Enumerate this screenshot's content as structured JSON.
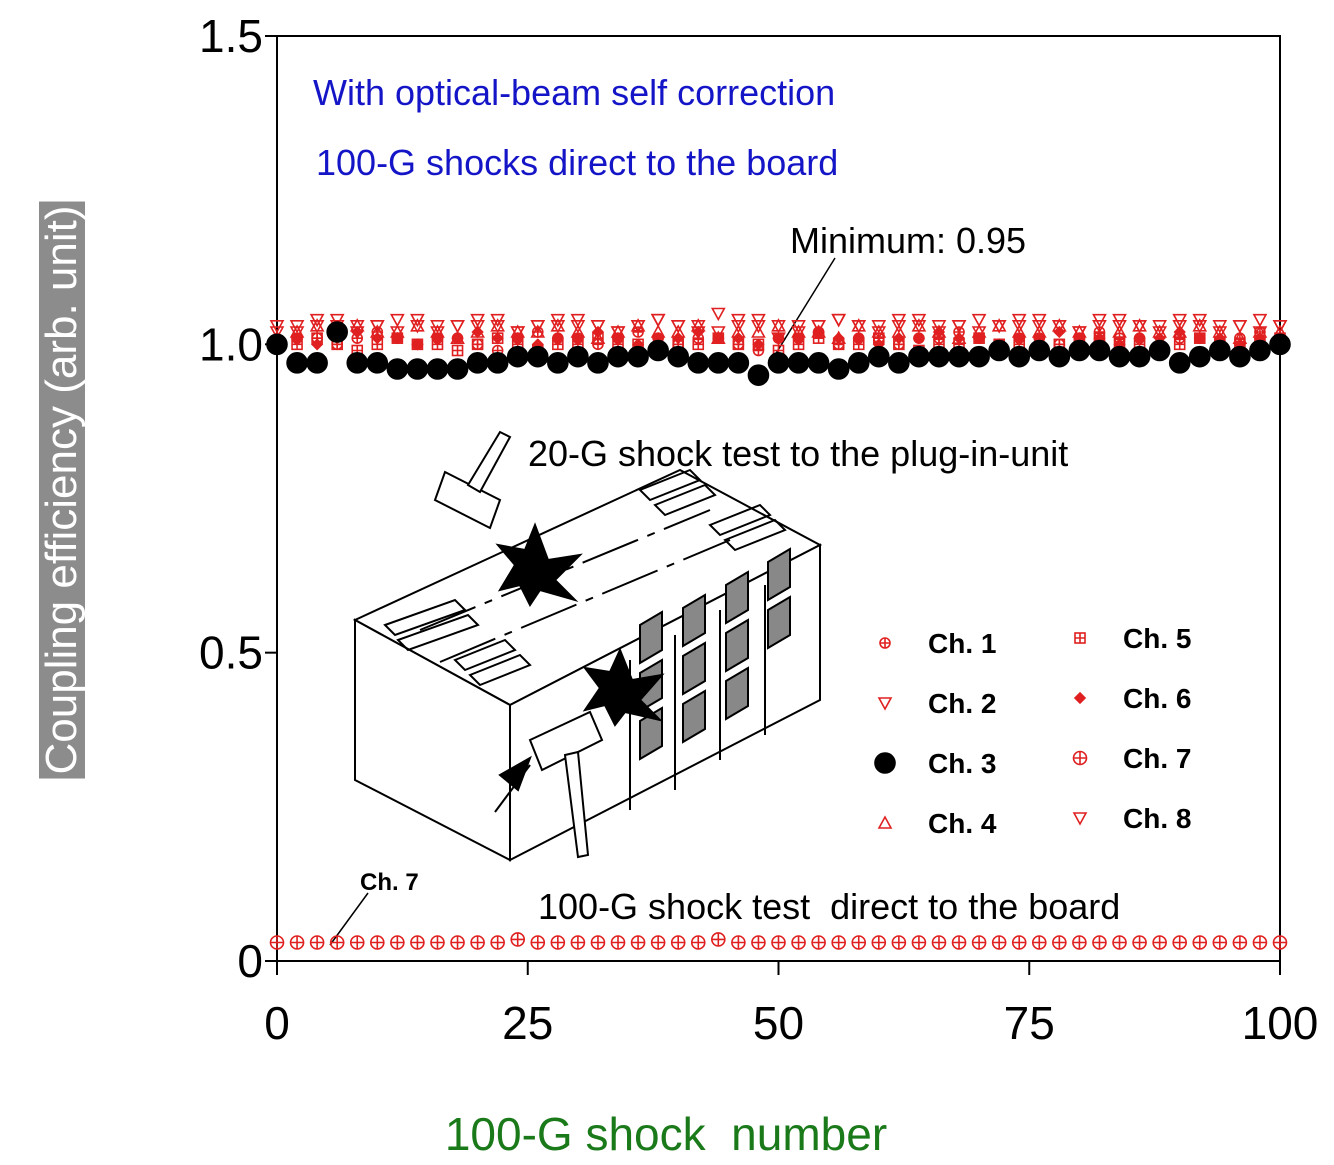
{
  "chart_data": {
    "type": "scatter",
    "xlabel": "100-G shock  number",
    "ylabel": "Coupling efficiency (arb. unit)",
    "xlim": [
      0,
      100
    ],
    "ylim": [
      0,
      1.5
    ],
    "xticks": [
      0,
      25,
      50,
      75,
      100
    ],
    "yticks": [
      0,
      0.5,
      {
        "value": 1,
        "label": "1.0"
      },
      1.5
    ],
    "legend": "right",
    "annotations": [
      "With optical-beam self correction",
      "100-G shocks direct to the board",
      "Minimum: 0.95",
      "20-G shock test to the plug-in-unit",
      "100-G shock test  direct to the board",
      "Ch. 7"
    ],
    "x": [
      0,
      2,
      4,
      6,
      8,
      10,
      12,
      14,
      16,
      18,
      20,
      22,
      24,
      26,
      28,
      30,
      32,
      34,
      36,
      38,
      40,
      42,
      44,
      46,
      48,
      50,
      52,
      54,
      56,
      58,
      60,
      62,
      64,
      66,
      68,
      70,
      72,
      74,
      76,
      78,
      80,
      82,
      84,
      86,
      88,
      90,
      92,
      94,
      96,
      98,
      100
    ],
    "series": [
      {
        "name": "Ch. 1",
        "color": "#e02020",
        "marker": "circle-plus",
        "values": [
          1.0,
          1.01,
          1.01,
          1.0,
          1.01,
          1.02,
          1.01,
          1.0,
          1.01,
          1.01,
          1.0,
          0.99,
          1.01,
          1.02,
          1.01,
          1.01,
          1.0,
          1.01,
          1.02,
          1.01,
          1.0,
          1.01,
          1.01,
          1.0,
          0.99,
          1.01,
          1.01,
          1.02,
          1.0,
          1.01,
          1.01,
          1.0,
          1.01,
          1.01,
          1.02,
          1.01,
          1.0,
          1.01,
          1.01,
          1.0,
          1.01,
          1.02,
          1.01,
          1.01,
          1.0,
          1.01,
          1.01,
          1.0,
          1.01,
          1.02,
          1.01
        ]
      },
      {
        "name": "Ch. 2",
        "color": "#e02020",
        "marker": "triangle-down",
        "values": [
          1.02,
          1.03,
          1.04,
          1.03,
          1.02,
          1.03,
          1.04,
          1.03,
          1.02,
          1.03,
          1.03,
          1.04,
          1.02,
          1.03,
          1.03,
          1.04,
          1.03,
          1.02,
          1.03,
          1.04,
          1.03,
          1.03,
          1.02,
          1.04,
          1.03,
          1.01,
          1.03,
          1.03,
          1.04,
          1.03,
          1.02,
          1.03,
          1.04,
          1.03,
          1.03,
          1.02,
          1.03,
          1.04,
          1.03,
          1.03,
          1.02,
          1.04,
          1.03,
          1.03,
          1.02,
          1.03,
          1.04,
          1.03,
          1.03,
          1.02,
          1.03
        ]
      },
      {
        "name": "Ch. 3",
        "color": "#000000",
        "marker": "circle",
        "values": [
          1.0,
          0.97,
          0.97,
          1.02,
          0.97,
          0.97,
          0.96,
          0.96,
          0.96,
          0.96,
          0.97,
          0.97,
          0.98,
          0.98,
          0.97,
          0.98,
          0.97,
          0.98,
          0.98,
          0.99,
          0.98,
          0.97,
          0.97,
          0.97,
          0.95,
          0.97,
          0.97,
          0.97,
          0.96,
          0.97,
          0.98,
          0.97,
          0.98,
          0.98,
          0.98,
          0.98,
          0.99,
          0.98,
          0.99,
          0.98,
          0.99,
          0.99,
          0.98,
          0.98,
          0.99,
          0.97,
          0.98,
          0.99,
          0.98,
          0.99,
          1.0
        ]
      },
      {
        "name": "Ch. 4",
        "color": "#e02020",
        "marker": "triangle-up",
        "values": [
          1.01,
          1.02,
          1.03,
          1.02,
          1.03,
          1.02,
          1.02,
          1.03,
          1.02,
          1.01,
          1.02,
          1.03,
          1.02,
          1.02,
          1.03,
          1.02,
          1.01,
          1.02,
          1.03,
          1.02,
          1.02,
          1.03,
          1.01,
          1.02,
          1.02,
          1.03,
          1.02,
          1.02,
          1.01,
          1.03,
          1.02,
          1.02,
          1.03,
          1.02,
          1.01,
          1.02,
          1.03,
          1.02,
          1.02,
          1.03,
          1.02,
          1.01,
          1.02,
          1.03,
          1.02,
          1.02,
          1.03,
          1.02,
          1.01,
          1.02,
          1.02
        ]
      },
      {
        "name": "Ch. 5",
        "color": "#e02020",
        "marker": "square-plus",
        "values": [
          1.0,
          1.0,
          1.01,
          1.0,
          0.99,
          1.0,
          1.01,
          1.0,
          1.0,
          0.99,
          1.0,
          1.01,
          1.0,
          0.99,
          1.0,
          1.0,
          1.01,
          1.0,
          1.0,
          0.99,
          1.0,
          1.0,
          1.01,
          1.0,
          1.0,
          0.99,
          1.0,
          1.01,
          1.0,
          1.0,
          1.01,
          1.0,
          0.99,
          1.0,
          1.0,
          1.01,
          1.0,
          1.0,
          0.99,
          1.0,
          1.0,
          1.01,
          1.0,
          1.0,
          0.99,
          1.0,
          1.01,
          1.0,
          1.0,
          1.0,
          1.01
        ]
      },
      {
        "name": "Ch. 6",
        "color": "#e02020",
        "marker": "diamond-plus",
        "values": [
          1.01,
          1.01,
          1.0,
          1.01,
          1.02,
          1.01,
          1.01,
          1.0,
          1.01,
          1.01,
          1.02,
          1.01,
          1.01,
          1.0,
          1.01,
          1.01,
          1.02,
          1.01,
          1.0,
          1.01,
          1.01,
          1.02,
          1.01,
          1.01,
          1.0,
          1.01,
          1.01,
          1.02,
          1.01,
          1.01,
          1.0,
          1.01,
          1.01,
          1.02,
          1.01,
          1.01,
          1.0,
          1.01,
          1.01,
          1.02,
          1.01,
          1.01,
          1.0,
          1.01,
          1.01,
          1.02,
          1.01,
          1.01,
          1.0,
          1.01,
          1.01
        ]
      },
      {
        "name": "Ch. 7",
        "color": "#e02020",
        "marker": "circle-plus-large",
        "values": [
          0.03,
          0.03,
          0.03,
          0.03,
          0.03,
          0.03,
          0.03,
          0.03,
          0.03,
          0.03,
          0.03,
          0.03,
          0.035,
          0.03,
          0.03,
          0.03,
          0.03,
          0.03,
          0.03,
          0.03,
          0.03,
          0.03,
          0.035,
          0.03,
          0.03,
          0.03,
          0.03,
          0.03,
          0.03,
          0.03,
          0.03,
          0.03,
          0.03,
          0.03,
          0.03,
          0.03,
          0.03,
          0.03,
          0.03,
          0.03,
          0.03,
          0.03,
          0.03,
          0.03,
          0.03,
          0.03,
          0.03,
          0.03,
          0.03,
          0.03,
          0.03
        ]
      },
      {
        "name": "Ch. 8",
        "color": "#e02020",
        "marker": "triangle-down",
        "values": [
          1.03,
          1.02,
          1.03,
          1.04,
          1.03,
          1.03,
          1.02,
          1.04,
          1.03,
          1.03,
          1.04,
          1.03,
          1.02,
          1.03,
          1.04,
          1.03,
          1.03,
          1.02,
          1.03,
          1.04,
          1.03,
          1.02,
          1.05,
          1.03,
          1.04,
          1.03,
          1.02,
          1.03,
          1.04,
          1.03,
          1.03,
          1.04,
          1.03,
          1.02,
          1.03,
          1.04,
          1.03,
          1.03,
          1.04,
          1.03,
          1.02,
          1.03,
          1.04,
          1.03,
          1.03,
          1.04,
          1.03,
          1.02,
          1.03,
          1.04,
          1.03
        ]
      }
    ]
  }
}
